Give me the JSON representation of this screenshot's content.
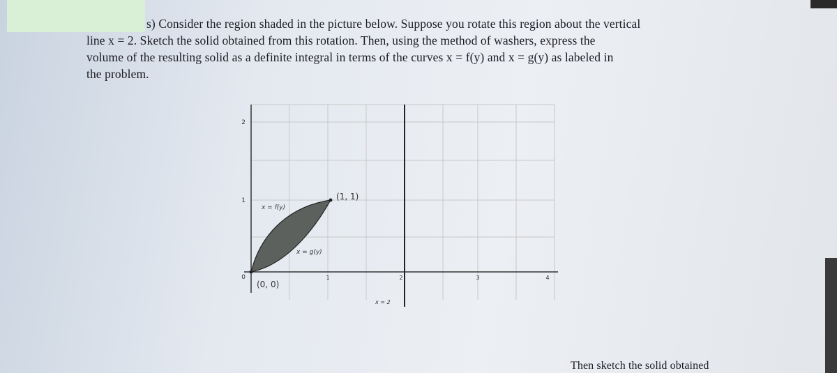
{
  "problem": {
    "lines": [
      "s) Consider the region shaded in the picture below. Suppose you rotate this region about the vertical",
      "line x = 2. Sketch the solid obtained from this rotation. Then, using the method of washers, express the",
      "volume of the resulting solid as a definite integral in terms of the curves x = f(y) and x = g(y) as labeled in",
      "the problem."
    ]
  },
  "figure": {
    "y_labels": [
      "2",
      "1",
      "0"
    ],
    "x_labels": [
      "1",
      "2",
      "3",
      "4"
    ],
    "point_top": "(1, 1)",
    "point_origin": "(0, 0)",
    "curve_f": "x = f(y)",
    "curve_g": "x = g(y)",
    "line_label": "x = 2"
  },
  "footer": {
    "text": "Then sketch the solid obtained"
  }
}
